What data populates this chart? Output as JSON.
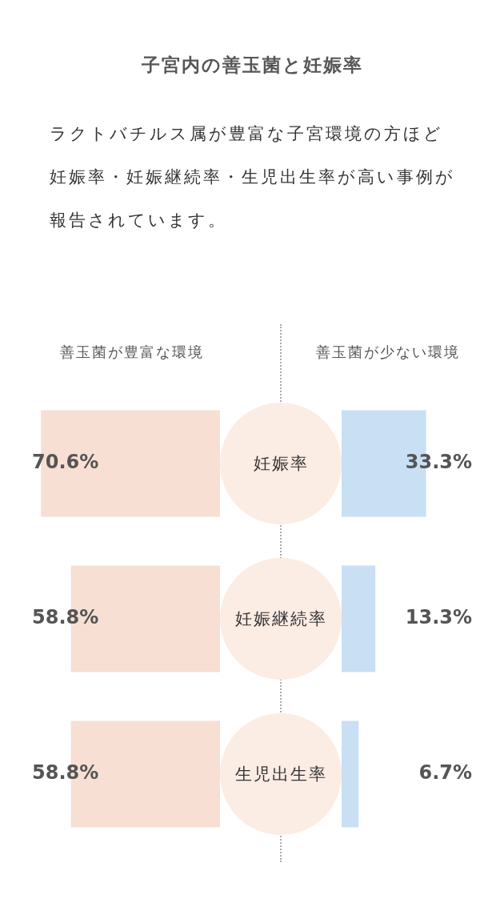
{
  "chart_data": [
    {
      "type": "bar",
      "orientation": "horizontal",
      "title": "子宮内の善玉菌と妊娠率",
      "subtitle": "ラクトバチルス属が豊富な子宮環境の方ほど妊娠率・妊娠継続率・生児出生率が高い事例が報告されています。",
      "categories": [
        "妊娠率",
        "妊娠継続率",
        "生児出生率"
      ],
      "legend": "top",
      "series": [
        {
          "name": "善玉菌が豊富な環境",
          "color": "#f7dfd3",
          "values": [
            70.6,
            58.8,
            58.8
          ],
          "value_labels": [
            "70.6%",
            "58.8%",
            "58.8%"
          ]
        }
      ]
    },
    {
      "type": "bar",
      "orientation": "horizontal",
      "categories": [
        null,
        null,
        null
      ],
      "legend": "top",
      "series": [
        {
          "name": "善玉菌が少ない環境",
          "color": "#c8dff4",
          "values": [
            33.3,
            13.3,
            6.7
          ],
          "value_labels": [
            "33.3%",
            "13.3%",
            "6.7%"
          ]
        }
      ]
    }
  ]
}
